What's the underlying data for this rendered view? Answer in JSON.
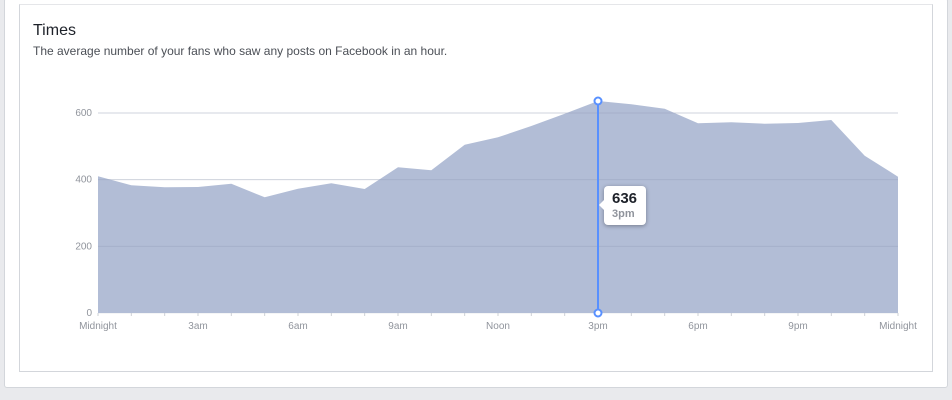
{
  "card": {
    "title": "Times",
    "subtitle": "The average number of your fans who saw any posts on Facebook in an hour."
  },
  "tooltip": {
    "value": "636",
    "time": "3pm"
  },
  "colors": {
    "area": "#b2bdd6",
    "accent": "#5890ff",
    "grid": "#e9ebee",
    "axis_text": "#90949c"
  },
  "chart_data": {
    "type": "area",
    "x": [
      "Midnight",
      "1am",
      "2am",
      "3am",
      "4am",
      "5am",
      "6am",
      "7am",
      "8am",
      "9am",
      "10am",
      "11am",
      "Noon",
      "1pm",
      "2pm",
      "3pm",
      "4pm",
      "5pm",
      "6pm",
      "7pm",
      "8pm",
      "9pm",
      "10pm",
      "11pm",
      "Midnight"
    ],
    "values": [
      410,
      383,
      377,
      378,
      388,
      347,
      373,
      389,
      372,
      437,
      428,
      505,
      527,
      561,
      598,
      636,
      626,
      613,
      569,
      572,
      568,
      570,
      579,
      472,
      409
    ],
    "xtick_labels": [
      "Midnight",
      "3am",
      "6am",
      "9am",
      "Noon",
      "3pm",
      "6pm",
      "9pm",
      "Midnight"
    ],
    "xtick_indices": [
      0,
      3,
      6,
      9,
      12,
      15,
      18,
      21,
      24
    ],
    "yticks": [
      0,
      200,
      400,
      600
    ],
    "ylim": [
      0,
      600
    ],
    "highlight_index": 15,
    "grid": true
  }
}
